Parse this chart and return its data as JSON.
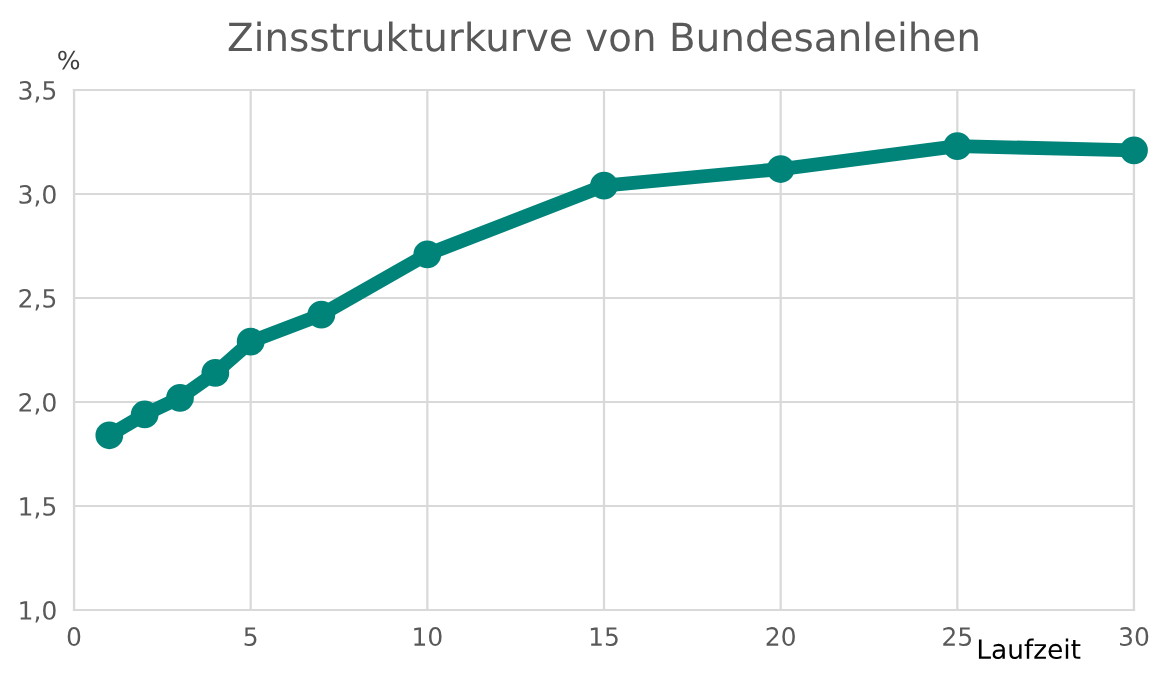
{
  "chart_data": {
    "type": "line",
    "title": "Zinsstrukturkurve von Bundesanleihen",
    "ylabel": "%",
    "xlabel": "Laufzeit",
    "x": [
      1,
      2,
      3,
      4,
      5,
      7,
      10,
      15,
      20,
      25,
      30
    ],
    "series": [
      {
        "color": "#00847a",
        "values": [
          1.84,
          1.94,
          2.02,
          2.14,
          2.29,
          2.42,
          2.71,
          3.04,
          3.12,
          3.23,
          3.21
        ]
      }
    ],
    "xlim": [
      0,
      30
    ],
    "xticks": [
      0,
      5,
      10,
      15,
      20,
      25,
      30
    ],
    "ylim": [
      1.0,
      3.5
    ],
    "yticks": [
      {
        "value": 1.0,
        "label": "1,0"
      },
      {
        "value": 1.5,
        "label": "1,5"
      },
      {
        "value": 2.0,
        "label": "2,0"
      },
      {
        "value": 2.5,
        "label": "2,5"
      },
      {
        "value": 3.0,
        "label": "3,0"
      },
      {
        "value": 3.5,
        "label": "3,5"
      }
    ],
    "grid": true,
    "marker": "circle",
    "line_style": "solid"
  }
}
